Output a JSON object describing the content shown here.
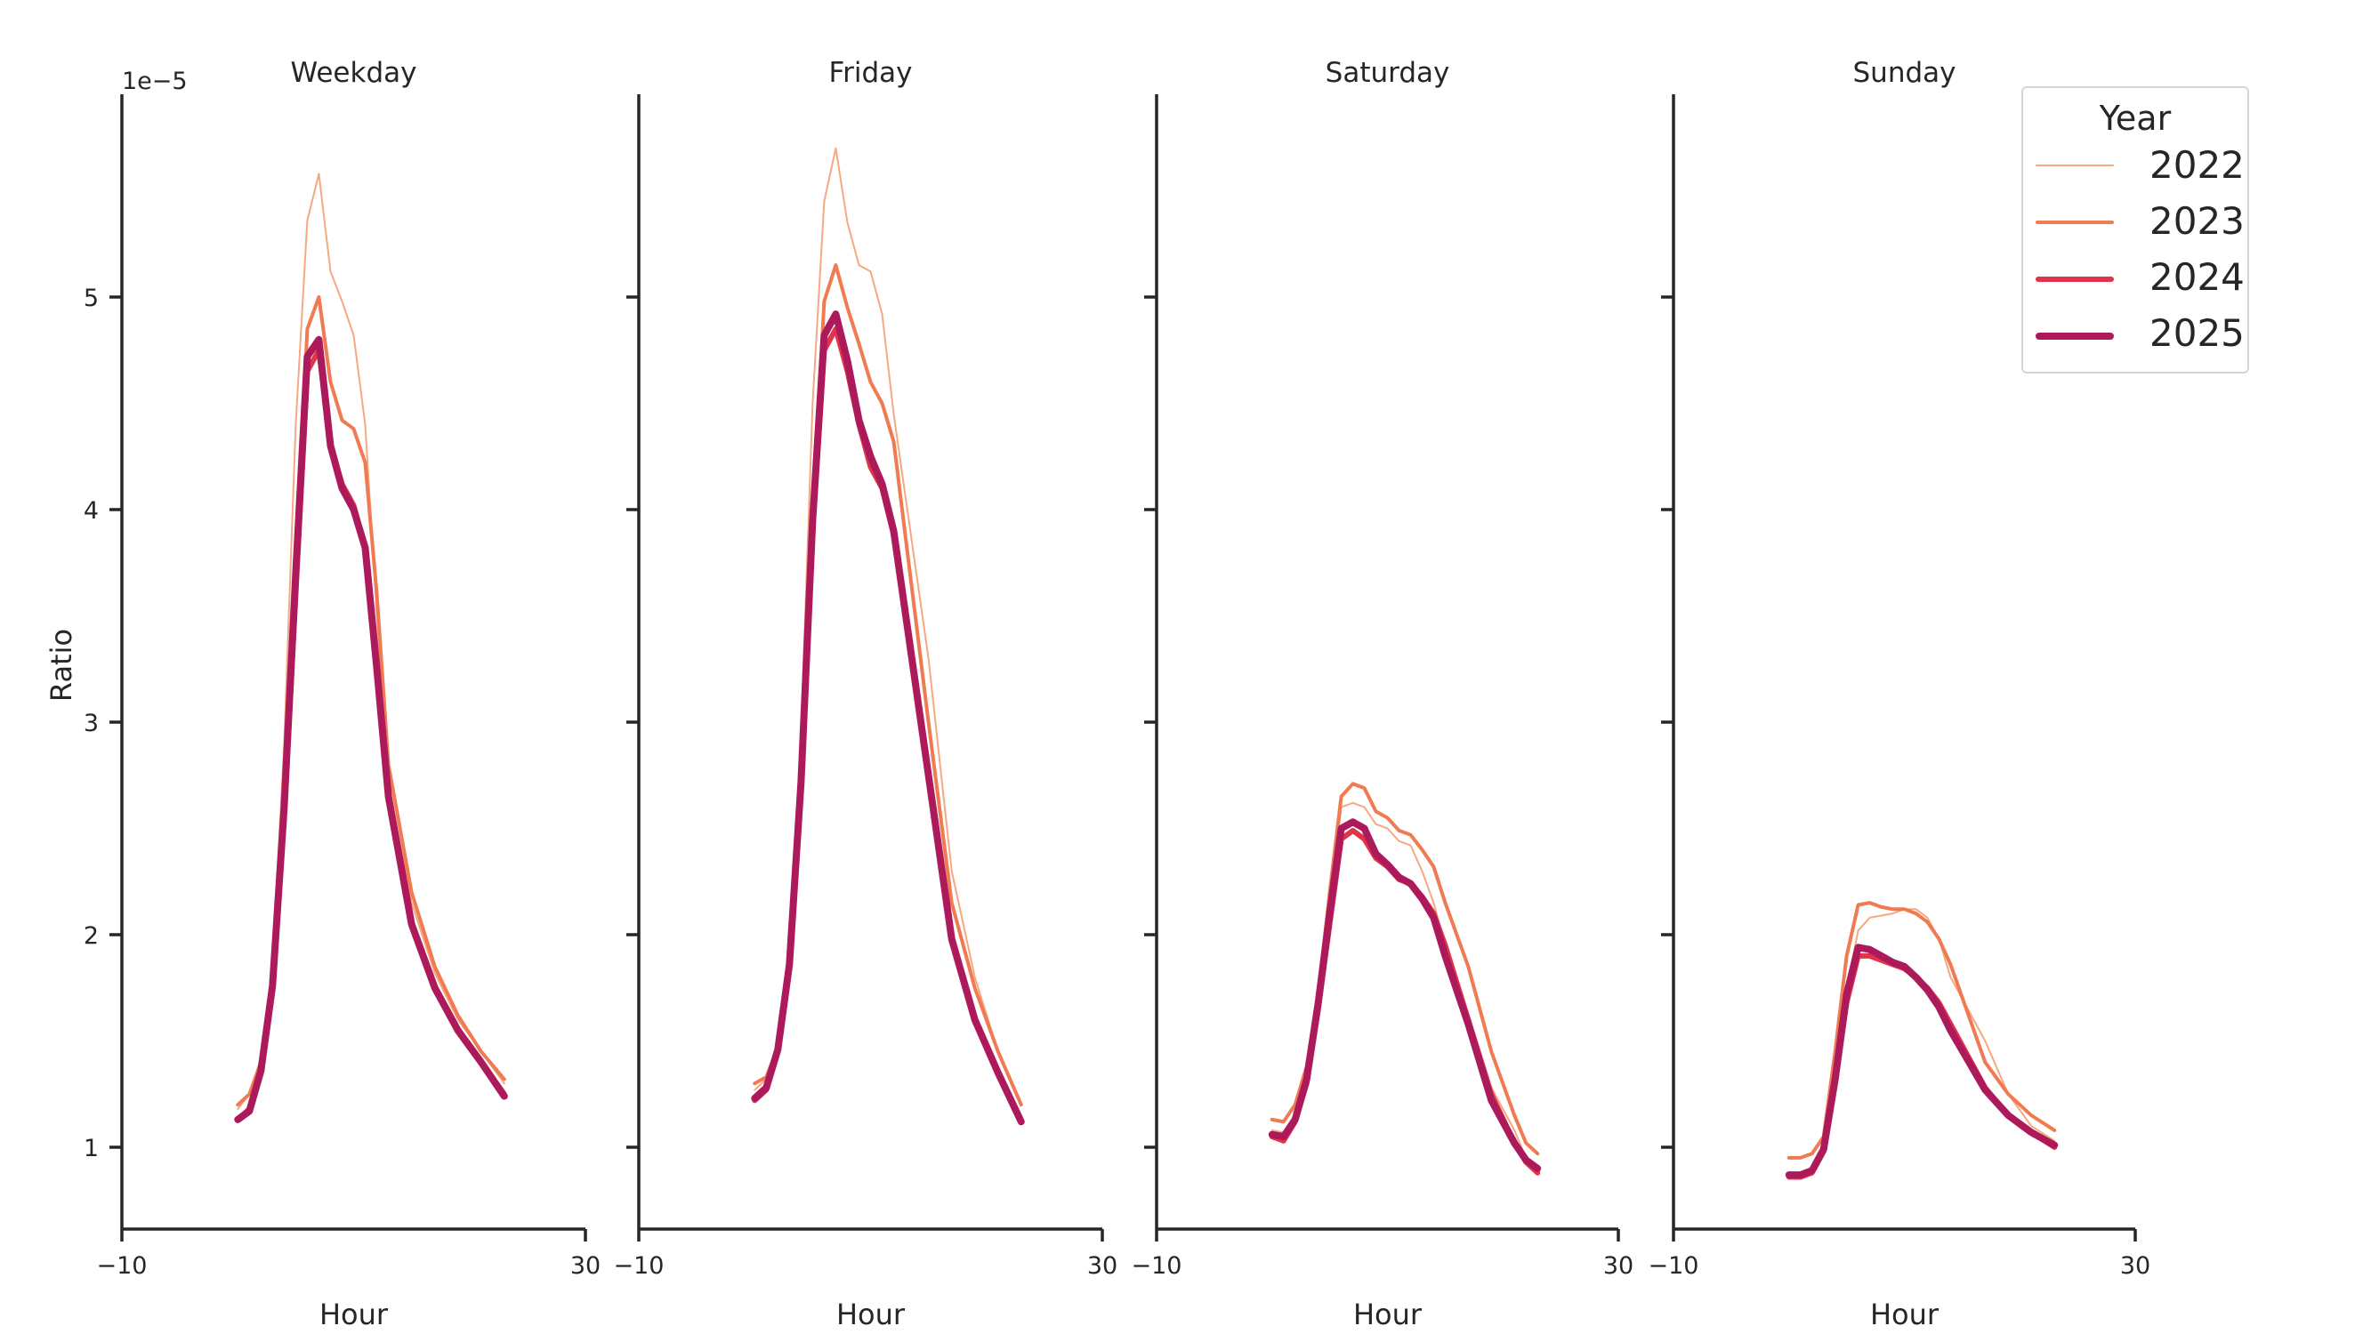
{
  "chart_data": {
    "type": "line",
    "title": "",
    "xlabel": "Hour",
    "ylabel": "Ratio",
    "y_offset_label": "1e−5",
    "xlim": [
      -10,
      30
    ],
    "ylim": [
      0.62,
      5.95
    ],
    "xticks": [
      -10,
      30
    ],
    "yticks": [
      1,
      2,
      3,
      4,
      5
    ],
    "grid": false,
    "legend": {
      "title": "Year",
      "position": "upper right"
    },
    "x": [
      0,
      1,
      2,
      3,
      4,
      5,
      6,
      7,
      8,
      9,
      10,
      11,
      12,
      13,
      14,
      15,
      16,
      17,
      18,
      19,
      20,
      21,
      22,
      23
    ],
    "series_styles": [
      {
        "name": "2022",
        "color": "#f6a880",
        "width": 2
      },
      {
        "name": "2023",
        "color": "#f07a52",
        "width": 4
      },
      {
        "name": "2024",
        "color": "#e0344a",
        "width": 6
      },
      {
        "name": "2025",
        "color": "#ad1a5c",
        "width": 8
      }
    ],
    "panels": [
      {
        "title": "Weekday",
        "series": [
          {
            "name": "2022",
            "values": [
              1.18,
              1.25,
              1.42,
              1.85,
              2.9,
              4.4,
              5.36,
              5.58,
              5.12,
              4.98,
              4.82,
              4.4,
              3.5,
              2.7,
              2.15,
              1.82,
              1.6,
              1.45,
              1.3
            ]
          },
          {
            "name": "2023",
            "values": [
              1.2,
              1.25,
              1.4,
              1.8,
              2.6,
              3.7,
              4.85,
              5.0,
              4.6,
              4.42,
              4.38,
              4.22,
              3.6,
              2.8,
              2.2,
              1.85,
              1.62,
              1.45,
              1.32
            ]
          },
          {
            "name": "2024",
            "values": [
              1.13,
              1.18,
              1.36,
              1.75,
              2.55,
              3.6,
              4.65,
              4.75,
              4.3,
              4.12,
              4.02,
              3.82,
              3.25,
              2.65,
              2.05,
              1.75,
              1.55,
              1.4,
              1.25
            ]
          },
          {
            "name": "2025",
            "values": [
              1.13,
              1.17,
              1.36,
              1.76,
              2.6,
              3.7,
              4.72,
              4.8,
              4.3,
              4.1,
              4.0,
              3.82,
              3.25,
              2.65,
              2.05,
              1.75,
              1.55,
              1.4,
              1.24
            ]
          }
        ],
        "hours_plotted": [
          0,
          1,
          2,
          3,
          4,
          5,
          6,
          7,
          8,
          9,
          10,
          11,
          12,
          13,
          15,
          17,
          19,
          21,
          23
        ]
      },
      {
        "title": "Friday",
        "series": [
          {
            "name": "2022",
            "values": [
              1.27,
              1.32,
              1.47,
              1.9,
              2.95,
              4.5,
              5.45,
              5.7,
              5.35,
              5.15,
              5.12,
              4.92,
              4.45,
              3.3,
              2.3,
              1.8,
              1.45,
              1.2
            ]
          },
          {
            "name": "2023",
            "values": [
              1.3,
              1.33,
              1.47,
              1.88,
              2.75,
              3.95,
              4.98,
              5.15,
              4.95,
              4.78,
              4.6,
              4.5,
              4.32,
              3.0,
              2.15,
              1.75,
              1.45,
              1.2
            ]
          },
          {
            "name": "2024",
            "values": [
              1.22,
              1.27,
              1.45,
              1.85,
              2.7,
              3.9,
              4.75,
              4.85,
              4.65,
              4.4,
              4.2,
              4.1,
              3.88,
              2.75,
              1.98,
              1.6,
              1.35,
              1.12
            ]
          },
          {
            "name": "2025",
            "values": [
              1.23,
              1.28,
              1.46,
              1.86,
              2.72,
              3.95,
              4.82,
              4.92,
              4.7,
              4.42,
              4.25,
              4.12,
              3.9,
              2.75,
              1.98,
              1.6,
              1.35,
              1.12
            ]
          }
        ],
        "hours_plotted": [
          0,
          1,
          2,
          3,
          4,
          5,
          6,
          7,
          8,
          9,
          10,
          11,
          12,
          15,
          17,
          19,
          21,
          23
        ]
      },
      {
        "title": "Saturday",
        "series": [
          {
            "name": "2022",
            "values": [
              1.08,
              1.07,
              1.15,
              1.35,
              1.7,
              2.15,
              2.6,
              2.62,
              2.6,
              2.52,
              2.5,
              2.44,
              2.42,
              2.3,
              2.15,
              1.95,
              1.62,
              1.28,
              1.08,
              0.95,
              0.9
            ]
          },
          {
            "name": "2023",
            "values": [
              1.13,
              1.12,
              1.2,
              1.38,
              1.72,
              2.2,
              2.65,
              2.71,
              2.69,
              2.58,
              2.55,
              2.49,
              2.47,
              2.4,
              2.32,
              2.15,
              1.85,
              1.45,
              1.15,
              1.02,
              0.97
            ]
          },
          {
            "name": "2024",
            "values": [
              1.05,
              1.03,
              1.12,
              1.3,
              1.65,
              2.05,
              2.45,
              2.49,
              2.45,
              2.36,
              2.32,
              2.26,
              2.24,
              2.18,
              2.1,
              1.95,
              1.6,
              1.25,
              1.02,
              0.93,
              0.88
            ]
          },
          {
            "name": "2025",
            "values": [
              1.06,
              1.05,
              1.13,
              1.32,
              1.68,
              2.1,
              2.5,
              2.53,
              2.5,
              2.38,
              2.33,
              2.27,
              2.24,
              2.17,
              2.08,
              1.9,
              1.58,
              1.22,
              1.02,
              0.94,
              0.9
            ]
          }
        ],
        "hours_plotted": [
          0,
          1,
          2,
          3,
          4,
          5,
          6,
          7,
          8,
          9,
          10,
          11,
          12,
          13,
          14,
          15,
          17,
          19,
          21,
          22,
          23
        ]
      },
      {
        "title": "Sunday",
        "series": [
          {
            "name": "2022",
            "values": [
              0.88,
              0.88,
              0.9,
              1.0,
              1.35,
              1.75,
              2.02,
              2.08,
              2.09,
              2.1,
              2.12,
              2.12,
              2.08,
              1.98,
              1.8,
              1.5,
              1.25,
              1.1,
              1.03
            ]
          },
          {
            "name": "2023",
            "values": [
              0.95,
              0.95,
              0.97,
              1.05,
              1.45,
              1.9,
              2.14,
              2.15,
              2.13,
              2.12,
              2.12,
              2.1,
              2.06,
              1.98,
              1.86,
              1.4,
              1.25,
              1.15,
              1.08
            ]
          },
          {
            "name": "2024",
            "values": [
              0.86,
              0.86,
              0.88,
              0.98,
              1.3,
              1.68,
              1.9,
              1.9,
              1.88,
              1.86,
              1.84,
              1.8,
              1.75,
              1.68,
              1.58,
              1.28,
              1.15,
              1.07,
              1.0
            ]
          },
          {
            "name": "2025",
            "values": [
              0.87,
              0.87,
              0.89,
              0.99,
              1.32,
              1.72,
              1.94,
              1.93,
              1.9,
              1.87,
              1.85,
              1.8,
              1.74,
              1.66,
              1.55,
              1.27,
              1.15,
              1.07,
              1.01
            ]
          }
        ],
        "hours_plotted": [
          0,
          1,
          2,
          3,
          4,
          5,
          6,
          7,
          8,
          9,
          10,
          11,
          12,
          13,
          14,
          17,
          19,
          21,
          23
        ]
      }
    ]
  },
  "legend": {
    "title": "Year",
    "items": [
      {
        "label": "2022",
        "color": "#f6a880"
      },
      {
        "label": "2023",
        "color": "#f07a52"
      },
      {
        "label": "2024",
        "color": "#e0344a"
      },
      {
        "label": "2025",
        "color": "#ad1a5c"
      }
    ]
  }
}
